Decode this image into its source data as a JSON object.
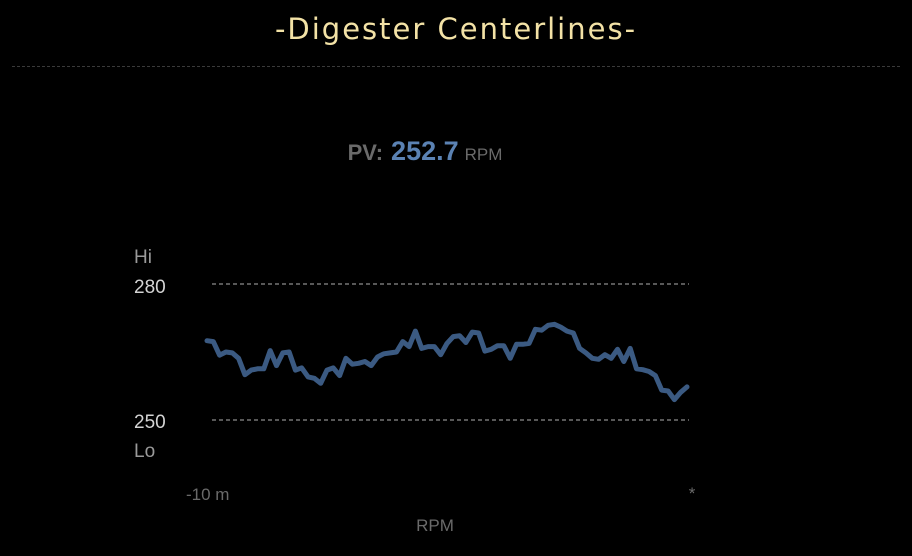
{
  "header": {
    "title": "-Digester Centerlines-"
  },
  "pv": {
    "label": "PV:",
    "value": "252.7",
    "unit": "RPM"
  },
  "colors": {
    "background": "#000000",
    "title": "#f3e2a6",
    "value": "#5b82b3",
    "line": "#3b5a82",
    "limit_line": "#8c8c8c",
    "label_muted": "#6a6a6a",
    "label_light": "#d4d4d4"
  },
  "chart_data": {
    "type": "line",
    "xlabel": "RPM",
    "x_start_label": "-10 m",
    "x_end_label": "*",
    "hi_label": "Hi",
    "lo_label": "Lo",
    "hi_limit": 280,
    "lo_limit": 250,
    "hi_value_label": "280",
    "lo_value_label": "250",
    "ylim": [
      250,
      280
    ],
    "grid": false,
    "series": [
      {
        "values": [
          267.5,
          267.3,
          264.3,
          265,
          264.8,
          263.6,
          260,
          261,
          261.3,
          261.3,
          265.3,
          262,
          264.8,
          265,
          261,
          261.5,
          259.5,
          259.2,
          258.1,
          261,
          261.5,
          259.8,
          263.6,
          262.3,
          262.5,
          262.9,
          262,
          263.9,
          264.6,
          264.8,
          265,
          267.3,
          266.2,
          269.6,
          265.8,
          266.2,
          266.2,
          264.4,
          266.9,
          268.4,
          268.6,
          267.1,
          269.4,
          269.2,
          265.2,
          265.6,
          266.4,
          266.4,
          263.6,
          266.7,
          266.7,
          266.9,
          270,
          269.8,
          270.9,
          271.1,
          270.5,
          269.6,
          269.2,
          265.8,
          264.8,
          263.6,
          263.4,
          264.4,
          263.6,
          265.6,
          262.9,
          265.8,
          261.3,
          261.1,
          260.7,
          259.8,
          256.6,
          256.4,
          254.5,
          256.1,
          257.3
        ]
      }
    ]
  }
}
